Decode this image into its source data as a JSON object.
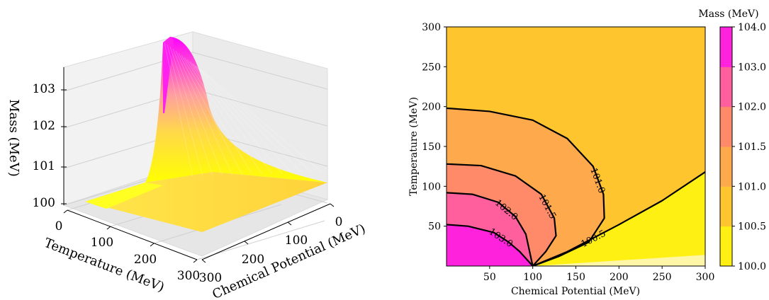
{
  "chart_data": [
    {
      "type": "surface3d",
      "xlabel": "Temperature (MeV)",
      "ylabel": "Chemical Potential (MeV)",
      "zlabel": "Mass (MeV)",
      "x_ticks": [
        "0",
        "100",
        "200",
        "300"
      ],
      "y_ticks": [
        "0",
        "100",
        "200",
        "300"
      ],
      "z_ticks": [
        "100",
        "101",
        "102",
        "103"
      ],
      "xlim": [
        0,
        300
      ],
      "ylim": [
        0,
        300
      ],
      "zlim": [
        100,
        104
      ],
      "colormap": [
        "#ffff00",
        "#ff00ff"
      ],
      "peak": {
        "temperature": 0,
        "chemical_potential": 100,
        "mass": 104.0
      },
      "baseline_mass": 100.0
    },
    {
      "type": "contour",
      "xlabel": "Chemical Potential (MeV)",
      "ylabel": "Temperature (MeV)",
      "x_ticks": [
        "50",
        "100",
        "150",
        "200",
        "250",
        "300"
      ],
      "y_ticks": [
        "50",
        "100",
        "150",
        "200",
        "250",
        "300"
      ],
      "xlim": [
        0,
        300
      ],
      "ylim": [
        0,
        300
      ],
      "colorbar_title": "Mass (MeV)",
      "colorbar_ticks": [
        "100.0",
        "100.5",
        "101.0",
        "101.5",
        "102.0",
        "103.0",
        "104.0"
      ],
      "levels": [
        100.0,
        100.5,
        101.0,
        101.5,
        102.0,
        103.0,
        104.0
      ],
      "level_colors": [
        "#fff014",
        "#ffc52e",
        "#ffa94d",
        "#ff8a6a",
        "#ff5f9c",
        "#ff22dd"
      ],
      "contours": [
        {
          "level": 101.0,
          "label": "101.0",
          "points": [
            [
              0,
              198
            ],
            [
              50,
              194
            ],
            [
              100,
              183
            ],
            [
              140,
              160
            ],
            [
              170,
              125
            ],
            [
              182,
              90
            ],
            [
              183,
              60
            ],
            [
              165,
              30
            ],
            [
              130,
              12
            ],
            [
              100,
              0
            ]
          ]
        },
        {
          "level": 101.5,
          "label": "101.5",
          "points": [
            [
              0,
              128
            ],
            [
              40,
              126
            ],
            [
              80,
              113
            ],
            [
              110,
              90
            ],
            [
              125,
              60
            ],
            [
              127,
              38
            ],
            [
              115,
              18
            ],
            [
              100,
              0
            ]
          ]
        },
        {
          "level": 102.0,
          "label": "102.0",
          "points": [
            [
              0,
              92
            ],
            [
              30,
              90
            ],
            [
              60,
              80
            ],
            [
              80,
              62
            ],
            [
              92,
              40
            ],
            [
              96,
              20
            ],
            [
              100,
              0
            ]
          ]
        },
        {
          "level": 103.0,
          "label": "103.0",
          "points": [
            [
              0,
              52
            ],
            [
              25,
              50
            ],
            [
              55,
              42
            ],
            [
              72,
              30
            ],
            [
              85,
              18
            ],
            [
              100,
              0
            ]
          ]
        },
        {
          "level": 100.5,
          "label": "100.5",
          "points": [
            [
              100,
              0
            ],
            [
              140,
              18
            ],
            [
              200,
              52
            ],
            [
              250,
              82
            ],
            [
              300,
              118
            ]
          ]
        }
      ]
    }
  ]
}
